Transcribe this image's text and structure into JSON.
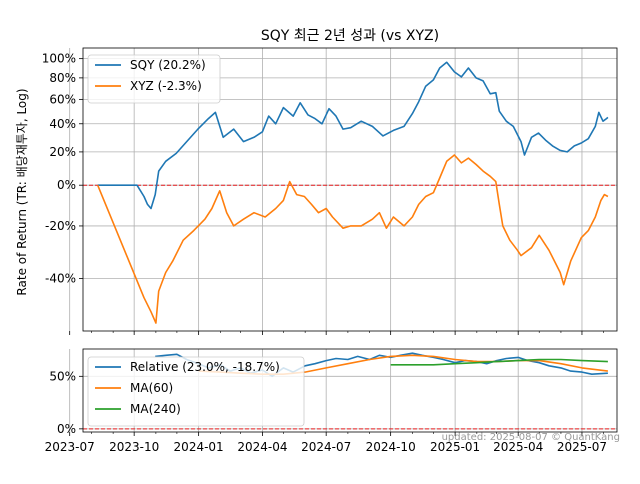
{
  "chart_data": [
    {
      "type": "line",
      "title": "SQY 최근 2년 성과 (vs XYZ)",
      "ylabel": "Rate of Return (TR: 배당재투자, Log)",
      "yscale": "log",
      "ytick_labels": [
        "100%",
        "80%",
        "60%",
        "40%",
        "20%",
        "0%",
        "-20%",
        "-40%"
      ],
      "ytick_values": [
        100,
        80,
        60,
        40,
        20,
        0,
        -20,
        -40
      ],
      "ylim": [
        -55,
        112
      ],
      "xlim": [
        "2023-07-20",
        "2025-08-20"
      ],
      "reference_line": 0,
      "grid": true,
      "legend_position": "top-left",
      "series": [
        {
          "name": "SQY (20.2%)",
          "color": "#1f77b4",
          "points": [
            [
              "2023-08-10",
              0
            ],
            [
              "2023-10-05",
              0
            ],
            [
              "2023-10-10",
              -3
            ],
            [
              "2023-10-15",
              -6
            ],
            [
              "2023-10-20",
              -10
            ],
            [
              "2023-10-25",
              -12
            ],
            [
              "2023-10-31",
              -5
            ],
            [
              "2023-11-05",
              8
            ],
            [
              "2023-11-15",
              14
            ],
            [
              "2023-11-30",
              19
            ],
            [
              "2023-12-15",
              27
            ],
            [
              "2023-12-31",
              36
            ],
            [
              "2024-01-15",
              44
            ],
            [
              "2024-01-25",
              49
            ],
            [
              "2024-02-05",
              30
            ],
            [
              "2024-02-20",
              36
            ],
            [
              "2024-03-05",
              27
            ],
            [
              "2024-03-20",
              30
            ],
            [
              "2024-04-01",
              34
            ],
            [
              "2024-04-10",
              46
            ],
            [
              "2024-04-20",
              40
            ],
            [
              "2024-05-01",
              53
            ],
            [
              "2024-05-15",
              46
            ],
            [
              "2024-05-25",
              57
            ],
            [
              "2024-06-05",
              47
            ],
            [
              "2024-06-15",
              44
            ],
            [
              "2024-06-25",
              40
            ],
            [
              "2024-07-05",
              52
            ],
            [
              "2024-07-15",
              46
            ],
            [
              "2024-07-25",
              36
            ],
            [
              "2024-08-05",
              37
            ],
            [
              "2024-08-20",
              42
            ],
            [
              "2024-09-05",
              38
            ],
            [
              "2024-09-20",
              31
            ],
            [
              "2024-10-05",
              35
            ],
            [
              "2024-10-20",
              38
            ],
            [
              "2024-11-01",
              48
            ],
            [
              "2024-11-10",
              58
            ],
            [
              "2024-11-20",
              72
            ],
            [
              "2024-12-01",
              78
            ],
            [
              "2024-12-10",
              90
            ],
            [
              "2024-12-20",
              96
            ],
            [
              "2024-12-31",
              86
            ],
            [
              "2025-01-10",
              81
            ],
            [
              "2025-01-20",
              90
            ],
            [
              "2025-01-31",
              80
            ],
            [
              "2025-02-10",
              77
            ],
            [
              "2025-02-20",
              65
            ],
            [
              "2025-02-28",
              66
            ],
            [
              "2025-03-05",
              50
            ],
            [
              "2025-03-15",
              42
            ],
            [
              "2025-03-25",
              38
            ],
            [
              "2025-04-05",
              27
            ],
            [
              "2025-04-10",
              18
            ],
            [
              "2025-04-20",
              30
            ],
            [
              "2025-04-30",
              33
            ],
            [
              "2025-05-10",
              28
            ],
            [
              "2025-05-20",
              24
            ],
            [
              "2025-05-31",
              21
            ],
            [
              "2025-06-10",
              20
            ],
            [
              "2025-06-20",
              24
            ],
            [
              "2025-06-30",
              26
            ],
            [
              "2025-07-10",
              29
            ],
            [
              "2025-07-20",
              38
            ],
            [
              "2025-07-25",
              49
            ],
            [
              "2025-07-31",
              42
            ],
            [
              "2025-08-05",
              44
            ],
            [
              "2025-08-07",
              45
            ]
          ]
        },
        {
          "name": "XYZ (-2.3%)",
          "color": "#ff7f0e",
          "points": [
            [
              "2023-08-10",
              0
            ],
            [
              "2023-10-15",
              -46
            ],
            [
              "2023-10-25",
              -50
            ],
            [
              "2023-11-01",
              -53
            ],
            [
              "2023-11-05",
              -44
            ],
            [
              "2023-11-15",
              -38
            ],
            [
              "2023-11-25",
              -34
            ],
            [
              "2023-12-10",
              -26
            ],
            [
              "2023-12-25",
              -22
            ],
            [
              "2024-01-10",
              -17
            ],
            [
              "2024-01-20",
              -12
            ],
            [
              "2024-01-31",
              -3
            ],
            [
              "2024-02-10",
              -14
            ],
            [
              "2024-02-20",
              -20
            ],
            [
              "2024-03-05",
              -17
            ],
            [
              "2024-03-20",
              -14
            ],
            [
              "2024-04-05",
              -16
            ],
            [
              "2024-04-20",
              -12
            ],
            [
              "2024-05-01",
              -8
            ],
            [
              "2024-05-10",
              2
            ],
            [
              "2024-05-20",
              -5
            ],
            [
              "2024-05-31",
              -6
            ],
            [
              "2024-06-10",
              -10
            ],
            [
              "2024-06-20",
              -14
            ],
            [
              "2024-07-01",
              -12
            ],
            [
              "2024-07-10",
              -16
            ],
            [
              "2024-07-25",
              -21
            ],
            [
              "2024-08-05",
              -20
            ],
            [
              "2024-08-20",
              -20
            ],
            [
              "2024-09-05",
              -17
            ],
            [
              "2024-09-15",
              -14
            ],
            [
              "2024-09-25",
              -21
            ],
            [
              "2024-10-05",
              -16
            ],
            [
              "2024-10-20",
              -20
            ],
            [
              "2024-11-01",
              -16
            ],
            [
              "2024-11-10",
              -10
            ],
            [
              "2024-11-20",
              -6
            ],
            [
              "2024-12-01",
              -4
            ],
            [
              "2024-12-10",
              4
            ],
            [
              "2024-12-20",
              14
            ],
            [
              "2024-12-31",
              18
            ],
            [
              "2025-01-10",
              13
            ],
            [
              "2025-01-20",
              16
            ],
            [
              "2025-01-31",
              12
            ],
            [
              "2025-02-10",
              8
            ],
            [
              "2025-02-20",
              5
            ],
            [
              "2025-02-28",
              2
            ],
            [
              "2025-03-05",
              -10
            ],
            [
              "2025-03-10",
              -20
            ],
            [
              "2025-03-20",
              -26
            ],
            [
              "2025-03-31",
              -30
            ],
            [
              "2025-04-05",
              -32
            ],
            [
              "2025-04-20",
              -29
            ],
            [
              "2025-05-01",
              -24
            ],
            [
              "2025-05-15",
              -30
            ],
            [
              "2025-05-31",
              -38
            ],
            [
              "2025-06-05",
              -42
            ],
            [
              "2025-06-15",
              -34
            ],
            [
              "2025-06-30",
              -25
            ],
            [
              "2025-07-10",
              -22
            ],
            [
              "2025-07-20",
              -16
            ],
            [
              "2025-07-28",
              -8
            ],
            [
              "2025-08-02",
              -5
            ],
            [
              "2025-08-07",
              -6
            ]
          ]
        }
      ]
    },
    {
      "type": "line",
      "ytick_labels": [
        "50%",
        "0%"
      ],
      "ytick_values": [
        50,
        0
      ],
      "ylim": [
        -3,
        76
      ],
      "xlim": [
        "2023-07-20",
        "2025-08-20"
      ],
      "xtick_labels": [
        "2023-07",
        "2023-10",
        "2024-01",
        "2024-04",
        "2024-07",
        "2024-10",
        "2025-01",
        "2025-04",
        "2025-07"
      ],
      "xtick_dates": [
        "2023-07-01",
        "2023-10-01",
        "2024-01-01",
        "2024-04-01",
        "2024-07-01",
        "2024-10-01",
        "2025-01-01",
        "2025-04-01",
        "2025-07-01"
      ],
      "reference_line": 0,
      "grid": true,
      "legend_position": "upper-left",
      "series": [
        {
          "name": "Relative (23.0%, -18.7%)",
          "color": "#1f77b4",
          "points": [
            [
              "2023-10-31",
              69
            ],
            [
              "2023-11-15",
              70
            ],
            [
              "2023-12-01",
              71
            ],
            [
              "2023-12-15",
              66
            ],
            [
              "2024-01-01",
              62
            ],
            [
              "2024-01-15",
              58
            ],
            [
              "2024-02-01",
              61
            ],
            [
              "2024-02-15",
              55
            ],
            [
              "2024-03-01",
              58
            ],
            [
              "2024-03-15",
              53
            ],
            [
              "2024-04-01",
              56
            ],
            [
              "2024-04-15",
              50
            ],
            [
              "2024-05-01",
              58
            ],
            [
              "2024-05-15",
              54
            ],
            [
              "2024-06-01",
              60
            ],
            [
              "2024-06-15",
              62
            ],
            [
              "2024-07-01",
              65
            ],
            [
              "2024-07-15",
              67
            ],
            [
              "2024-08-01",
              66
            ],
            [
              "2024-08-15",
              69
            ],
            [
              "2024-09-01",
              66
            ],
            [
              "2024-09-15",
              70
            ],
            [
              "2024-10-01",
              68
            ],
            [
              "2024-10-15",
              70
            ],
            [
              "2024-11-01",
              72
            ],
            [
              "2024-11-15",
              70
            ],
            [
              "2024-12-01",
              68
            ],
            [
              "2024-12-15",
              66
            ],
            [
              "2025-01-01",
              63
            ],
            [
              "2025-01-15",
              65
            ],
            [
              "2025-02-01",
              64
            ],
            [
              "2025-02-15",
              62
            ],
            [
              "2025-03-01",
              65
            ],
            [
              "2025-03-15",
              67
            ],
            [
              "2025-04-01",
              68
            ],
            [
              "2025-04-15",
              65
            ],
            [
              "2025-05-01",
              63
            ],
            [
              "2025-05-15",
              60
            ],
            [
              "2025-06-01",
              58
            ],
            [
              "2025-06-15",
              55
            ],
            [
              "2025-07-01",
              54
            ],
            [
              "2025-07-15",
              52
            ],
            [
              "2025-08-07",
              53
            ]
          ]
        },
        {
          "name": "MA(60)",
          "color": "#ff7f0e",
          "points": [
            [
              "2024-01-01",
              55
            ],
            [
              "2024-02-01",
              54
            ],
            [
              "2024-03-01",
              53
            ],
            [
              "2024-04-01",
              52
            ],
            [
              "2024-05-01",
              52
            ],
            [
              "2024-06-01",
              54
            ],
            [
              "2024-07-01",
              58
            ],
            [
              "2024-08-01",
              62
            ],
            [
              "2024-09-01",
              66
            ],
            [
              "2024-10-01",
              69
            ],
            [
              "2024-11-01",
              70
            ],
            [
              "2024-12-01",
              69
            ],
            [
              "2025-01-01",
              66
            ],
            [
              "2025-02-01",
              64
            ],
            [
              "2025-03-01",
              64
            ],
            [
              "2025-04-01",
              65
            ],
            [
              "2025-05-01",
              65
            ],
            [
              "2025-06-01",
              62
            ],
            [
              "2025-07-01",
              58
            ],
            [
              "2025-08-07",
              55
            ]
          ]
        },
        {
          "name": "MA(240)",
          "color": "#2ca02c",
          "points": [
            [
              "2024-10-01",
              61
            ],
            [
              "2024-11-01",
              61
            ],
            [
              "2024-12-01",
              61
            ],
            [
              "2025-01-01",
              62
            ],
            [
              "2025-02-01",
              63
            ],
            [
              "2025-03-01",
              64
            ],
            [
              "2025-04-01",
              65
            ],
            [
              "2025-05-01",
              66
            ],
            [
              "2025-06-01",
              66
            ],
            [
              "2025-07-01",
              65
            ],
            [
              "2025-08-07",
              64
            ]
          ]
        }
      ]
    }
  ],
  "watermark": "updated: 2025-08-07 © QuantKang"
}
